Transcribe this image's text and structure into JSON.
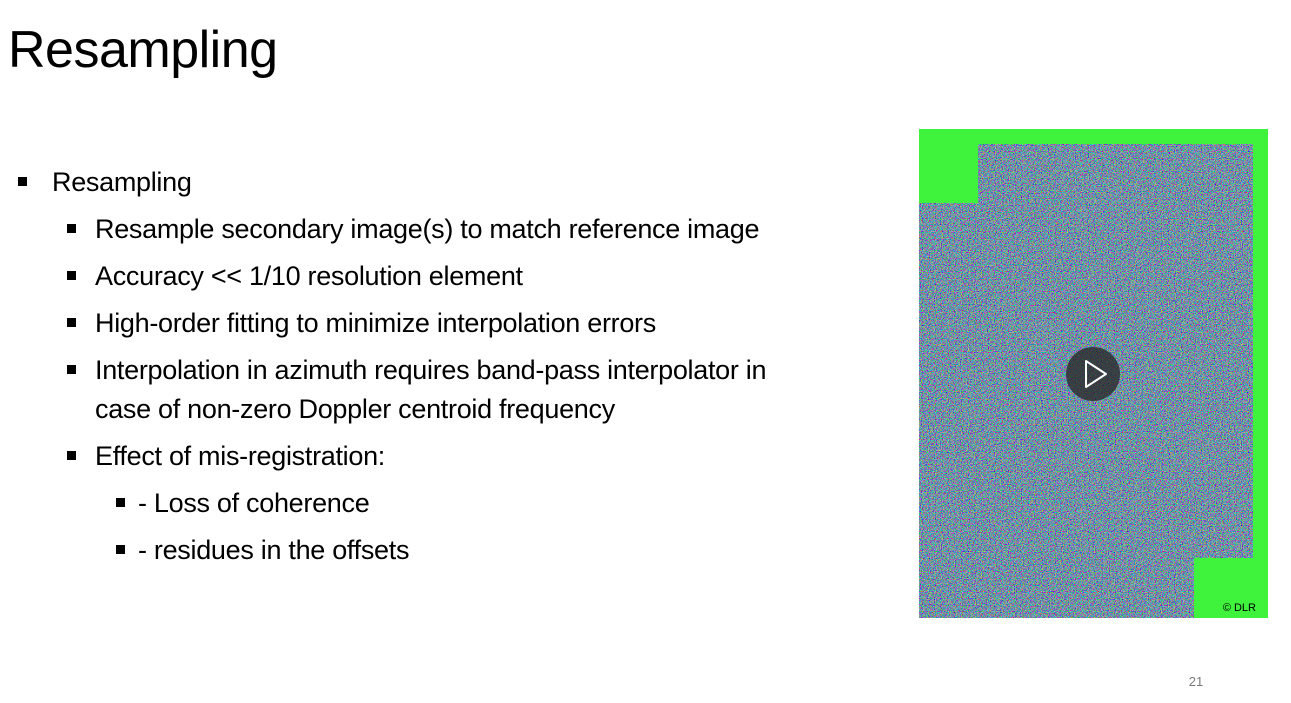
{
  "slide": {
    "title": "Resampling",
    "page_number": "21"
  },
  "bullets": [
    {
      "level": 1,
      "lines": [
        "Resampling"
      ]
    },
    {
      "level": 2,
      "lines": [
        "Resample secondary image(s) to match reference image"
      ]
    },
    {
      "level": 2,
      "lines": [
        "Accuracy << 1/10 resolution element"
      ]
    },
    {
      "level": 2,
      "lines": [
        "High-order fitting to minimize interpolation errors"
      ]
    },
    {
      "level": 2,
      "lines": [
        "Interpolation in azimuth requires band-pass interpolator in",
        "case of non-zero Doppler centroid frequency"
      ]
    },
    {
      "level": 2,
      "lines": [
        "Effect of mis-registration:"
      ]
    },
    {
      "level": 3,
      "lines": [
        "- Loss of coherence"
      ]
    },
    {
      "level": 3,
      "lines": [
        "- residues in the offsets"
      ]
    }
  ],
  "media": {
    "credit": "© DLR",
    "play_icon": "play-icon",
    "colors": {
      "frame_green": "#3ff23c",
      "noise_base": "#7b8a73",
      "play_circle": "#282828",
      "play_triangle": "#ffffff"
    }
  }
}
